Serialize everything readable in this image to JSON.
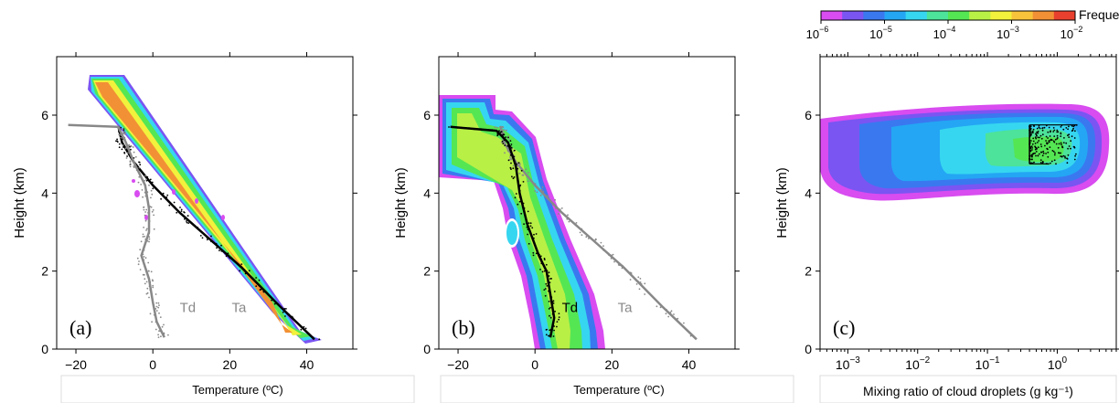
{
  "colorbar": {
    "title": "Frequency",
    "tick_labels": [
      "10",
      "10",
      "10",
      "10",
      "10"
    ],
    "tick_exponents": [
      "−6",
      "−5",
      "−4",
      "−3",
      "−2"
    ],
    "colors": [
      "#d84cf0",
      "#7a55f2",
      "#3a78f0",
      "#24a6f4",
      "#36d6f0",
      "#4de39a",
      "#55e653",
      "#b9f046",
      "#f2f13c",
      "#f7c33a",
      "#f29035",
      "#e8402e"
    ]
  },
  "chart_data": [
    {
      "type": "heatmap",
      "panel_label": "(a)",
      "xlabel": "Temperature (ºC)",
      "ylabel": "Height (km)",
      "xlim": [
        -25,
        52
      ],
      "ylim": [
        0,
        7.5
      ],
      "x_ticks": [
        -20,
        0,
        20,
        40
      ],
      "y_ticks": [
        0,
        2,
        4,
        6
      ],
      "x_tick_labels": [
        "−20",
        "0",
        "20",
        "40"
      ],
      "y_tick_labels": [
        "0",
        "2",
        "4",
        "6"
      ],
      "annotations": [
        {
          "text": "Td",
          "x": 7,
          "y": 0.95,
          "color": "#888888"
        },
        {
          "text": "Ta",
          "x": 20.5,
          "y": 0.95,
          "color": "#888888"
        }
      ],
      "profiles": [
        {
          "name": "Ta",
          "color": "#000000",
          "points": [
            [
              42,
              0.25
            ],
            [
              33,
              1.1
            ],
            [
              23,
              2.1
            ],
            [
              15,
              2.8
            ],
            [
              7,
              3.5
            ],
            [
              0,
              4.2
            ],
            [
              -5,
              4.8
            ],
            [
              -8,
              5.3
            ],
            [
              -9,
              5.72
            ]
          ]
        },
        {
          "name": "Td",
          "color": "#888888",
          "points": [
            [
              3,
              0.3
            ],
            [
              1,
              0.7
            ],
            [
              0,
              1.2
            ],
            [
              -1,
              1.8
            ],
            [
              -3,
              2.4
            ],
            [
              -1,
              3.0
            ],
            [
              -1,
              3.6
            ],
            [
              -2,
              4.2
            ],
            [
              -5,
              4.8
            ],
            [
              -7,
              5.3
            ],
            [
              -9,
              5.7
            ],
            [
              -22,
              5.75
            ]
          ]
        }
      ]
    },
    {
      "type": "heatmap",
      "panel_label": "(b)",
      "xlabel": "Temperature (ºC)",
      "ylabel": "Height (km)",
      "xlim": [
        -25,
        52
      ],
      "ylim": [
        0,
        7.5
      ],
      "x_ticks": [
        -20,
        0,
        20,
        40
      ],
      "y_ticks": [
        0,
        2,
        4,
        6
      ],
      "x_tick_labels": [
        "−20",
        "0",
        "20",
        "40"
      ],
      "y_tick_labels": [
        "0",
        "2",
        "4",
        "6"
      ],
      "annotations": [
        {
          "text": "Td",
          "x": 7,
          "y": 0.95,
          "color": "#000000"
        },
        {
          "text": "Ta",
          "x": 21.5,
          "y": 0.95,
          "color": "#888888"
        }
      ],
      "profiles": [
        {
          "name": "Ta",
          "color": "#888888",
          "points": [
            [
              42,
              0.25
            ],
            [
              33,
              1.1
            ],
            [
              23,
              2.1
            ],
            [
              15,
              2.8
            ],
            [
              7,
              3.5
            ],
            [
              0,
              4.2
            ],
            [
              -5,
              4.8
            ],
            [
              -8,
              5.3
            ],
            [
              -9,
              5.72
            ]
          ]
        },
        {
          "name": "Td",
          "color": "#000000",
          "points": [
            [
              4,
              0.3
            ],
            [
              5,
              0.8
            ],
            [
              4,
              1.4
            ],
            [
              3,
              2.0
            ],
            [
              1,
              2.4
            ],
            [
              -2,
              3.2
            ],
            [
              -4,
              4.0
            ],
            [
              -5,
              4.7
            ],
            [
              -7,
              5.3
            ],
            [
              -10,
              5.6
            ],
            [
              -22,
              5.7
            ]
          ]
        }
      ]
    },
    {
      "type": "heatmap",
      "panel_label": "(c)",
      "xlabel": "Mixing ratio of cloud droplets (g kg⁻¹)",
      "ylabel": "Height (km)",
      "x_scale": "log",
      "xlim": [
        0.0004,
        7
      ],
      "ylim": [
        0,
        7.5
      ],
      "x_ticks": [
        0.001,
        0.01,
        0.1,
        1
      ],
      "y_ticks": [
        0,
        2,
        4,
        6
      ],
      "x_tick_labels": [
        "10",
        "10",
        "10",
        "10"
      ],
      "x_tick_exponents": [
        "−3",
        "−2",
        "−1",
        "0"
      ],
      "y_tick_labels": [
        "0",
        "2",
        "4",
        "6"
      ],
      "observations": {
        "x_range": [
          0.4,
          1.9
        ],
        "y_range": [
          4.75,
          5.75
        ]
      }
    }
  ]
}
